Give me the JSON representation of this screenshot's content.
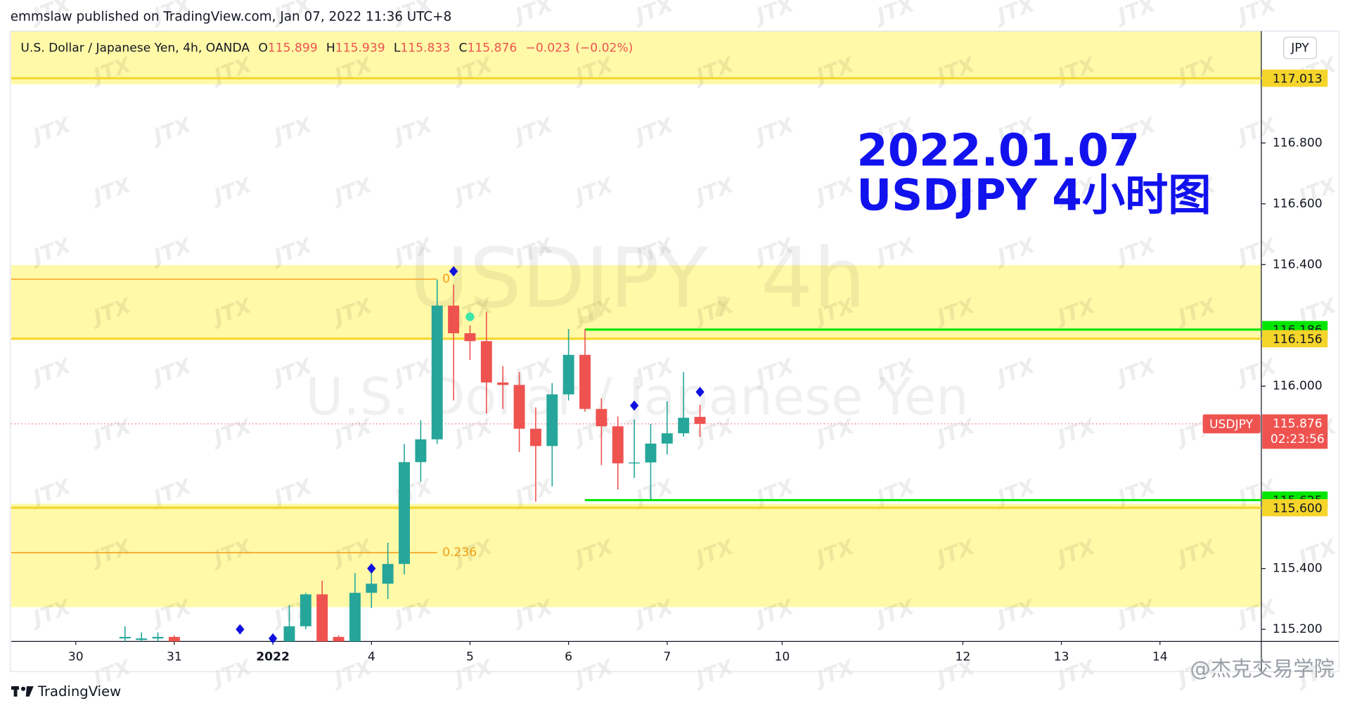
{
  "header": {
    "publisher": "emmslaw published on TradingView.com, Jan 07, 2022 11:36 UTC+8"
  },
  "currency_button": "JPY",
  "footer": {
    "brand": "TradingView",
    "credit": "@杰克交易学院"
  },
  "watermark_text": "JTX",
  "chart_data": {
    "type": "candlestick",
    "title": "U.S. Dollar / Japanese Yen, 4h, OANDA",
    "watermark_symbol": "USDJPY, 4h",
    "watermark_name": "U.S. Dollar / Japanese Yen",
    "annotation": [
      "2022.01.07",
      "USDJPY 4小时图"
    ],
    "legend": [
      {
        "prefix": "O",
        "value": 115.899
      },
      {
        "prefix": "H",
        "value": 115.939
      },
      {
        "prefix": "L",
        "value": 115.833
      },
      {
        "prefix": "C",
        "value": 115.876
      }
    ],
    "change": {
      "value": -0.023,
      "label": "−0.023"
    },
    "change_pct": {
      "value": -0.02,
      "label": "(−0.02%)"
    },
    "up_color": "#26a69a",
    "down_color": "#ef5350",
    "x": [
      3,
      4,
      5,
      6,
      13,
      14,
      15,
      16,
      17,
      18,
      19,
      20,
      21,
      22,
      23,
      24,
      25,
      26,
      27,
      28,
      29,
      30,
      31,
      32,
      33,
      34,
      35,
      36,
      37,
      38
    ],
    "open": [
      115.17,
      115.165,
      115.17,
      115.175,
      115.16,
      115.21,
      115.315,
      115.175,
      115.16,
      115.32,
      115.35,
      115.415,
      115.75,
      115.825,
      116.265,
      116.174,
      116.148,
      116.012,
      116.004,
      115.86,
      115.803,
      115.973,
      116.103,
      115.925,
      115.868,
      115.746,
      115.749,
      115.811,
      115.845,
      115.899
    ],
    "high": [
      115.21,
      115.19,
      115.19,
      115.18,
      115.28,
      115.32,
      115.36,
      115.18,
      115.385,
      115.4,
      115.485,
      115.81,
      115.888,
      116.35,
      116.335,
      116.2,
      116.245,
      116.066,
      116.046,
      115.93,
      116.01,
      116.188,
      116.188,
      115.96,
      115.9,
      115.89,
      115.876,
      115.95,
      116.046,
      115.939
    ],
    "low": [
      115.16,
      115.16,
      115.16,
      115.16,
      115.16,
      115.2,
      115.16,
      115.16,
      115.16,
      115.27,
      115.3,
      115.38,
      115.685,
      115.81,
      115.953,
      116.086,
      115.91,
      115.925,
      115.783,
      115.62,
      115.67,
      115.953,
      115.916,
      115.74,
      115.66,
      115.698,
      115.627,
      115.775,
      115.834,
      115.833
    ],
    "close": [
      115.175,
      115.17,
      115.175,
      115.16,
      115.21,
      115.315,
      115.16,
      115.16,
      115.32,
      115.35,
      115.415,
      115.75,
      115.825,
      116.265,
      116.174,
      116.148,
      116.012,
      116.004,
      115.86,
      115.803,
      115.973,
      116.103,
      115.925,
      115.868,
      115.746,
      115.749,
      115.811,
      115.845,
      115.896,
      115.876
    ],
    "xlim": [
      -3.93,
      72.17
    ],
    "xticks": [
      {
        "value": 0,
        "label": "30"
      },
      {
        "value": 6,
        "label": "31"
      },
      {
        "value": 12,
        "label": "2022"
      },
      {
        "value": 18,
        "label": "4"
      },
      {
        "value": 24,
        "label": "5"
      },
      {
        "value": 30,
        "label": "6"
      },
      {
        "value": 36,
        "label": "7"
      },
      {
        "value": 43,
        "label": "10"
      },
      {
        "value": 54,
        "label": "12"
      },
      {
        "value": 60,
        "label": "13"
      },
      {
        "value": 66,
        "label": "14"
      }
    ],
    "ylim": [
      115.16,
      117.168
    ],
    "yticks": [
      {
        "value": 115.2,
        "label": "115.200"
      },
      {
        "value": 115.4,
        "label": "115.400"
      },
      {
        "value": 116,
        "label": "116.000"
      },
      {
        "value": 116.4,
        "label": "116.400"
      },
      {
        "value": 116.6,
        "label": "116.600"
      },
      {
        "value": 116.8,
        "label": "116.800"
      }
    ],
    "zones": [
      {
        "low": 116.993,
        "high": 117.168
      },
      {
        "low": 116.157,
        "high": 116.398
      },
      {
        "low": 115.273,
        "high": 115.613
      }
    ],
    "zone_color": "#fff9a8",
    "levels": [
      {
        "value": 117.013,
        "label": "117.013",
        "color": "#f5d52a",
        "from_x": null
      },
      {
        "value": 116.186,
        "label": "116.186",
        "color": "#00e600",
        "from_x": 31
      },
      {
        "value": 116.156,
        "label": "116.156",
        "color": "#f5d52a",
        "from_x": null
      },
      {
        "value": 115.625,
        "label": "115.625",
        "color": "#00e600",
        "from_x": 31
      },
      {
        "value": 115.6,
        "label": "115.600",
        "color": "#f5d52a",
        "from_x": null
      }
    ],
    "fib": [
      {
        "level": 0,
        "price": 116.352,
        "to_x": 22
      },
      {
        "level": 0.236,
        "price": 115.452,
        "to_x": 22
      }
    ],
    "fib_color": "#f39c12",
    "markers": [
      {
        "x": 23,
        "y": 116.378,
        "shape": "diamond",
        "color": "#1010e0"
      },
      {
        "x": 18,
        "y": 115.4,
        "shape": "diamond",
        "color": "#1010e0"
      },
      {
        "x": 10,
        "y": 115.2,
        "shape": "diamond",
        "color": "#1010e0"
      },
      {
        "x": 12,
        "y": 115.17,
        "shape": "diamond",
        "color": "#1010e0"
      },
      {
        "x": 34,
        "y": 115.936,
        "shape": "diamond",
        "color": "#1010e0"
      },
      {
        "x": 38,
        "y": 115.981,
        "shape": "diamond",
        "color": "#1010e0"
      },
      {
        "x": 24,
        "y": 116.228,
        "shape": "circle",
        "color": "#3ee6a8"
      }
    ],
    "last_price": {
      "symbol": "USDJPY",
      "value": 115.876,
      "countdown": "02:23:56",
      "color": "#ef5350"
    }
  }
}
